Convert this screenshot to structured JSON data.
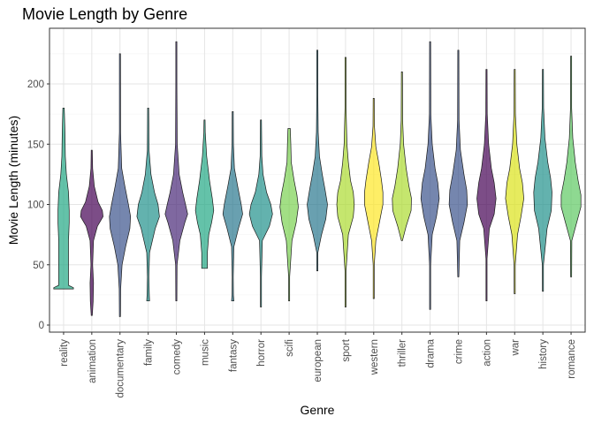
{
  "chart_data": {
    "type": "violin",
    "title": "Movie Length by Genre",
    "xlabel": "Genre",
    "ylabel": "Movie Length (minutes)",
    "ylim": [
      0,
      235
    ],
    "yticks": [
      0,
      50,
      100,
      150,
      200
    ],
    "grid": true,
    "legend": "none",
    "categories": [
      "reality",
      "animation",
      "documentary",
      "family",
      "comedy",
      "music",
      "fantasy",
      "horror",
      "scifi",
      "european",
      "sport",
      "western",
      "thriller",
      "drama",
      "crime",
      "action",
      "war",
      "history",
      "romance"
    ],
    "series": [
      {
        "category": "reality",
        "color": "#22a884",
        "min": 30,
        "max": 180,
        "median": 90,
        "profile": [
          [
            30,
            0.7
          ],
          [
            31,
            0.7
          ],
          [
            33,
            0.35
          ],
          [
            50,
            0.35
          ],
          [
            70,
            0.35
          ],
          [
            85,
            0.4
          ],
          [
            95,
            0.4
          ],
          [
            110,
            0.35
          ],
          [
            125,
            0.2
          ],
          [
            140,
            0.12
          ],
          [
            160,
            0.1
          ],
          [
            180,
            0.05
          ]
        ]
      },
      {
        "category": "animation",
        "color": "#440154",
        "min": 8,
        "max": 145,
        "median": 92,
        "profile": [
          [
            8,
            0.02
          ],
          [
            20,
            0.1
          ],
          [
            35,
            0.12
          ],
          [
            50,
            0.06
          ],
          [
            70,
            0.12
          ],
          [
            82,
            0.4
          ],
          [
            90,
            0.8
          ],
          [
            95,
            0.75
          ],
          [
            102,
            0.45
          ],
          [
            115,
            0.18
          ],
          [
            130,
            0.06
          ],
          [
            145,
            0.02
          ]
        ]
      },
      {
        "category": "documentary",
        "color": "#3b528b",
        "min": 7,
        "max": 225,
        "median": 88,
        "profile": [
          [
            7,
            0.02
          ],
          [
            30,
            0.05
          ],
          [
            50,
            0.15
          ],
          [
            65,
            0.4
          ],
          [
            80,
            0.7
          ],
          [
            90,
            0.75
          ],
          [
            100,
            0.6
          ],
          [
            115,
            0.35
          ],
          [
            130,
            0.12
          ],
          [
            160,
            0.04
          ],
          [
            225,
            0.02
          ]
        ]
      },
      {
        "category": "family",
        "color": "#21918c",
        "min": 20,
        "max": 180,
        "median": 95,
        "profile": [
          [
            20,
            0.1
          ],
          [
            25,
            0.08
          ],
          [
            40,
            0.05
          ],
          [
            60,
            0.1
          ],
          [
            80,
            0.5
          ],
          [
            90,
            0.8
          ],
          [
            100,
            0.7
          ],
          [
            110,
            0.45
          ],
          [
            125,
            0.2
          ],
          [
            145,
            0.06
          ],
          [
            180,
            0.02
          ]
        ]
      },
      {
        "category": "comedy",
        "color": "#482878",
        "min": 20,
        "max": 235,
        "median": 95,
        "profile": [
          [
            20,
            0.02
          ],
          [
            50,
            0.05
          ],
          [
            70,
            0.25
          ],
          [
            85,
            0.6
          ],
          [
            92,
            0.8
          ],
          [
            100,
            0.65
          ],
          [
            110,
            0.45
          ],
          [
            125,
            0.2
          ],
          [
            150,
            0.06
          ],
          [
            200,
            0.02
          ],
          [
            235,
            0.01
          ]
        ]
      },
      {
        "category": "music",
        "color": "#22a884",
        "min": 47,
        "max": 170,
        "median": 95,
        "profile": [
          [
            47,
            0.2
          ],
          [
            52,
            0.2
          ],
          [
            60,
            0.2
          ],
          [
            75,
            0.3
          ],
          [
            85,
            0.5
          ],
          [
            95,
            0.65
          ],
          [
            105,
            0.55
          ],
          [
            120,
            0.35
          ],
          [
            140,
            0.15
          ],
          [
            160,
            0.05
          ],
          [
            170,
            0.02
          ]
        ]
      },
      {
        "category": "fantasy",
        "color": "#2a788e",
        "min": 20,
        "max": 177,
        "median": 95,
        "profile": [
          [
            20,
            0.08
          ],
          [
            25,
            0.05
          ],
          [
            40,
            0.02
          ],
          [
            65,
            0.08
          ],
          [
            80,
            0.4
          ],
          [
            92,
            0.7
          ],
          [
            100,
            0.6
          ],
          [
            115,
            0.35
          ],
          [
            130,
            0.12
          ],
          [
            150,
            0.05
          ],
          [
            177,
            0.02
          ]
        ]
      },
      {
        "category": "horror",
        "color": "#21918c",
        "min": 15,
        "max": 170,
        "median": 93,
        "profile": [
          [
            15,
            0.02
          ],
          [
            40,
            0.02
          ],
          [
            70,
            0.1
          ],
          [
            82,
            0.6
          ],
          [
            92,
            0.82
          ],
          [
            100,
            0.7
          ],
          [
            110,
            0.4
          ],
          [
            125,
            0.15
          ],
          [
            140,
            0.06
          ],
          [
            170,
            0.02
          ]
        ]
      },
      {
        "category": "scifi",
        "color": "#7ad151",
        "min": 20,
        "max": 163,
        "median": 100,
        "profile": [
          [
            20,
            0.02
          ],
          [
            40,
            0.04
          ],
          [
            70,
            0.2
          ],
          [
            85,
            0.5
          ],
          [
            98,
            0.65
          ],
          [
            108,
            0.55
          ],
          [
            120,
            0.35
          ],
          [
            135,
            0.15
          ],
          [
            150,
            0.12
          ],
          [
            163,
            0.08
          ]
        ]
      },
      {
        "category": "european",
        "color": "#2a788e",
        "min": 45,
        "max": 228,
        "median": 100,
        "profile": [
          [
            45,
            0.02
          ],
          [
            60,
            0.04
          ],
          [
            75,
            0.3
          ],
          [
            88,
            0.6
          ],
          [
            100,
            0.72
          ],
          [
            112,
            0.55
          ],
          [
            125,
            0.35
          ],
          [
            140,
            0.15
          ],
          [
            160,
            0.06
          ],
          [
            190,
            0.03
          ],
          [
            228,
            0.02
          ]
        ]
      },
      {
        "category": "sport",
        "color": "#addc30",
        "min": 15,
        "max": 222,
        "median": 100,
        "profile": [
          [
            15,
            0.02
          ],
          [
            45,
            0.02
          ],
          [
            75,
            0.2
          ],
          [
            90,
            0.55
          ],
          [
            100,
            0.62
          ],
          [
            110,
            0.55
          ],
          [
            120,
            0.35
          ],
          [
            135,
            0.2
          ],
          [
            150,
            0.1
          ],
          [
            180,
            0.04
          ],
          [
            222,
            0.02
          ]
        ]
      },
      {
        "category": "western",
        "color": "#fde725",
        "min": 22,
        "max": 188,
        "median": 105,
        "profile": [
          [
            22,
            0.02
          ],
          [
            50,
            0.02
          ],
          [
            70,
            0.15
          ],
          [
            85,
            0.4
          ],
          [
            100,
            0.65
          ],
          [
            110,
            0.65
          ],
          [
            120,
            0.55
          ],
          [
            135,
            0.35
          ],
          [
            148,
            0.15
          ],
          [
            165,
            0.05
          ],
          [
            188,
            0.02
          ]
        ]
      },
      {
        "category": "thriller",
        "color": "#addc30",
        "min": 70,
        "max": 210,
        "median": 102,
        "profile": [
          [
            70,
            0.02
          ],
          [
            82,
            0.3
          ],
          [
            95,
            0.65
          ],
          [
            105,
            0.68
          ],
          [
            115,
            0.5
          ],
          [
            130,
            0.3
          ],
          [
            150,
            0.12
          ],
          [
            170,
            0.05
          ],
          [
            210,
            0.02
          ]
        ]
      },
      {
        "category": "drama",
        "color": "#3b528b",
        "min": 13,
        "max": 235,
        "median": 105,
        "profile": [
          [
            13,
            0.02
          ],
          [
            50,
            0.02
          ],
          [
            75,
            0.15
          ],
          [
            90,
            0.45
          ],
          [
            105,
            0.65
          ],
          [
            118,
            0.55
          ],
          [
            130,
            0.35
          ],
          [
            150,
            0.15
          ],
          [
            175,
            0.05
          ],
          [
            235,
            0.01
          ]
        ]
      },
      {
        "category": "crime",
        "color": "#3b528b",
        "min": 40,
        "max": 228,
        "median": 108,
        "profile": [
          [
            40,
            0.02
          ],
          [
            70,
            0.1
          ],
          [
            85,
            0.4
          ],
          [
            100,
            0.65
          ],
          [
            112,
            0.6
          ],
          [
            125,
            0.4
          ],
          [
            145,
            0.15
          ],
          [
            170,
            0.05
          ],
          [
            228,
            0.01
          ]
        ]
      },
      {
        "category": "action",
        "color": "#440154",
        "min": 20,
        "max": 212,
        "median": 108,
        "profile": [
          [
            20,
            0.02
          ],
          [
            55,
            0.02
          ],
          [
            80,
            0.2
          ],
          [
            92,
            0.55
          ],
          [
            105,
            0.68
          ],
          [
            118,
            0.55
          ],
          [
            130,
            0.35
          ],
          [
            150,
            0.15
          ],
          [
            175,
            0.05
          ],
          [
            212,
            0.01
          ]
        ]
      },
      {
        "category": "war",
        "color": "#dce319",
        "min": 26,
        "max": 212,
        "median": 110,
        "profile": [
          [
            26,
            0.02
          ],
          [
            50,
            0.04
          ],
          [
            75,
            0.2
          ],
          [
            90,
            0.45
          ],
          [
            105,
            0.65
          ],
          [
            118,
            0.55
          ],
          [
            130,
            0.35
          ],
          [
            150,
            0.15
          ],
          [
            175,
            0.05
          ],
          [
            212,
            0.01
          ]
        ]
      },
      {
        "category": "history",
        "color": "#21918c",
        "min": 28,
        "max": 212,
        "median": 110,
        "profile": [
          [
            28,
            0.02
          ],
          [
            50,
            0.04
          ],
          [
            80,
            0.3
          ],
          [
            95,
            0.6
          ],
          [
            110,
            0.65
          ],
          [
            122,
            0.55
          ],
          [
            135,
            0.35
          ],
          [
            155,
            0.15
          ],
          [
            180,
            0.05
          ],
          [
            212,
            0.01
          ]
        ]
      },
      {
        "category": "romance",
        "color": "#5ec962",
        "min": 40,
        "max": 223,
        "median": 105,
        "profile": [
          [
            40,
            0.02
          ],
          [
            70,
            0.05
          ],
          [
            85,
            0.4
          ],
          [
            98,
            0.7
          ],
          [
            108,
            0.7
          ],
          [
            120,
            0.5
          ],
          [
            135,
            0.3
          ],
          [
            155,
            0.12
          ],
          [
            180,
            0.04
          ],
          [
            223,
            0.01
          ]
        ]
      }
    ]
  }
}
